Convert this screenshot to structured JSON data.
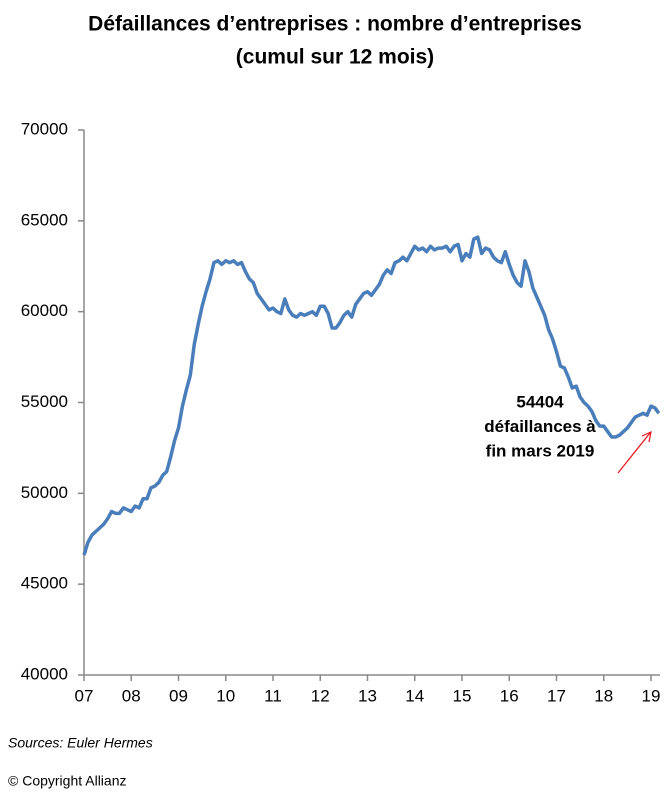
{
  "chart_data": {
    "type": "line",
    "title": [
      "Défaillances d’entreprises : nombre d’entreprises",
      "(cumul sur 12 mois)"
    ],
    "categories": [
      "07",
      null,
      null,
      null,
      null,
      null,
      null,
      null,
      null,
      null,
      null,
      null,
      "08",
      null,
      null,
      null,
      null,
      null,
      null,
      null,
      null,
      null,
      null,
      null,
      "09",
      null,
      null,
      null,
      null,
      null,
      null,
      null,
      null,
      null,
      null,
      null,
      "10",
      null,
      null,
      null,
      null,
      null,
      null,
      null,
      null,
      null,
      null,
      null,
      "11",
      null,
      null,
      null,
      null,
      null,
      null,
      null,
      null,
      null,
      null,
      null,
      "12",
      null,
      null,
      null,
      null,
      null,
      null,
      null,
      null,
      null,
      null,
      null,
      "13",
      null,
      null,
      null,
      null,
      null,
      null,
      null,
      null,
      null,
      null,
      null,
      "14",
      null,
      null,
      null,
      null,
      null,
      null,
      null,
      null,
      null,
      null,
      null,
      "15",
      null,
      null,
      null,
      null,
      null,
      null,
      null,
      null,
      null,
      null,
      null,
      "16",
      null,
      null,
      null,
      null,
      null,
      null,
      null,
      null,
      null,
      null,
      null,
      "17",
      null,
      null,
      null,
      null,
      null,
      null,
      null,
      null,
      null,
      null,
      null,
      "18",
      null,
      null,
      null,
      null,
      null,
      null,
      null,
      null,
      null,
      null,
      null,
      "19",
      null,
      null
    ],
    "values": [
      46600,
      47300,
      47700,
      47900,
      48100,
      48300,
      48600,
      49000,
      48900,
      48900,
      49200,
      49100,
      49000,
      49300,
      49200,
      49700,
      49700,
      50300,
      50400,
      50600,
      51000,
      51200,
      52000,
      52900,
      53600,
      54800,
      55700,
      56500,
      58200,
      59300,
      60300,
      61100,
      61800,
      62700,
      62800,
      62600,
      62800,
      62700,
      62800,
      62600,
      62700,
      62200,
      61800,
      61600,
      61000,
      60700,
      60400,
      60100,
      60200,
      60000,
      59900,
      60700,
      60100,
      59800,
      59700,
      59900,
      59800,
      59900,
      60000,
      59800,
      60300,
      60300,
      59900,
      59100,
      59100,
      59400,
      59800,
      60000,
      59700,
      60400,
      60700,
      61000,
      61100,
      60900,
      61200,
      61500,
      62000,
      62300,
      62100,
      62700,
      62800,
      63000,
      62800,
      63200,
      63600,
      63400,
      63500,
      63300,
      63600,
      63400,
      63500,
      63500,
      63600,
      63300,
      63600,
      63700,
      62800,
      63200,
      63000,
      64000,
      64100,
      63200,
      63500,
      63400,
      63000,
      62800,
      62700,
      63300,
      62600,
      62000,
      61600,
      61400,
      62800,
      62200,
      61300,
      60800,
      60300,
      59800,
      59000,
      58500,
      57800,
      57000,
      56900,
      56400,
      55800,
      55900,
      55300,
      55000,
      54800,
      54500,
      54000,
      53700,
      53700,
      53400,
      53100,
      53100,
      53200,
      53400,
      53600,
      53900,
      54200,
      54300,
      54400,
      54300,
      54800,
      54700,
      54404
    ],
    "color": "#4a7ebb",
    "ylim": [
      40000,
      70000
    ],
    "yticks": [
      40000,
      45000,
      50000,
      55000,
      60000,
      65000,
      70000
    ],
    "annotation": [
      "54404",
      "défaillances à",
      "fin mars 2019"
    ],
    "annotation_color": "#e8101a",
    "source": "Sources: Euler Hermes",
    "copyright": "© Copyright Allianz"
  }
}
